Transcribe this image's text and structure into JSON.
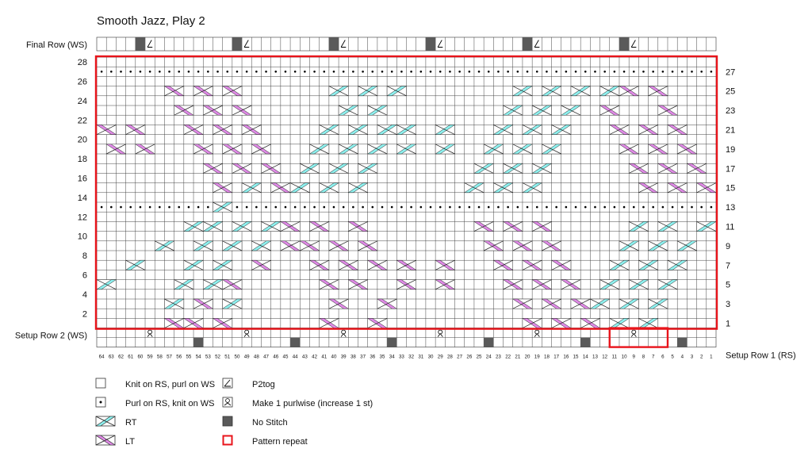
{
  "title": "Smooth Jazz, Play 2",
  "labels": {
    "final_row": "Final Row (WS)",
    "setup_row_2": "Setup Row 2 (WS)",
    "setup_row_1": "Setup Row 1 (RS)"
  },
  "left_row_numbers": [
    "28",
    "26",
    "24",
    "22",
    "20",
    "18",
    "16",
    "14",
    "12",
    "10",
    "8",
    "6",
    "4",
    "2"
  ],
  "right_row_numbers": [
    "27",
    "25",
    "23",
    "21",
    "19",
    "17",
    "15",
    "13",
    "11",
    "9",
    "7",
    "5",
    "3",
    "1"
  ],
  "stitch_columns": [
    "64",
    "63",
    "62",
    "61",
    "60",
    "59",
    "58",
    "57",
    "56",
    "55",
    "54",
    "53",
    "52",
    "51",
    "50",
    "49",
    "48",
    "47",
    "46",
    "45",
    "44",
    "43",
    "42",
    "41",
    "40",
    "39",
    "38",
    "37",
    "36",
    "35",
    "34",
    "33",
    "32",
    "31",
    "30",
    "29",
    "28",
    "27",
    "26",
    "25",
    "24",
    "23",
    "22",
    "21",
    "20",
    "19",
    "18",
    "17",
    "16",
    "15",
    "14",
    "13",
    "12",
    "11",
    "10",
    "9",
    "8",
    "7",
    "6",
    "5",
    "4",
    "3",
    "2",
    "1"
  ],
  "colors": {
    "rt": "#8ef1ef",
    "lt": "#df8ae6",
    "repeat": "#e8141b",
    "nostitch": "#5a5a5a"
  },
  "legend": [
    {
      "icon": "knit",
      "label": "Knit on RS, purl on WS"
    },
    {
      "icon": "purl",
      "label": "Purl on RS, knit on WS"
    },
    {
      "icon": "rt",
      "label": "RT"
    },
    {
      "icon": "lt",
      "label": "LT"
    },
    {
      "icon": "p2tog",
      "label": "P2tog"
    },
    {
      "icon": "m1p",
      "label": "Make 1 purlwise (increase 1 st)"
    },
    {
      "icon": "nostitch",
      "label": "No Stitch"
    },
    {
      "icon": "repeat",
      "label": "Pattern repeat"
    }
  ],
  "special_rows": {
    "final_row": {
      "nostitch": [
        60,
        50,
        40,
        30,
        20,
        10
      ],
      "p2tog": [
        59,
        49,
        39,
        29,
        19,
        9
      ]
    },
    "setup_row_2": {
      "nostitch": [
        54,
        44,
        34,
        24,
        14,
        4
      ],
      "m1p": [
        59,
        49,
        39,
        29,
        19,
        9
      ]
    }
  },
  "purl_rows": [
    27,
    13
  ],
  "cables": [
    [
      64,
      "rt",
      5
    ],
    [
      63,
      "rt",
      5
    ],
    [
      57,
      "rt",
      5
    ],
    [
      56,
      "rt",
      5
    ],
    [
      54,
      "rt",
      5
    ],
    [
      53,
      "rt",
      5
    ],
    [
      60,
      "rt",
      5
    ],
    [
      52,
      "rt",
      5
    ],
    [
      51,
      "rt",
      5
    ],
    [
      23,
      "lt",
      5
    ],
    [
      24,
      "lt",
      5
    ],
    [
      20,
      "lt",
      5
    ],
    [
      33,
      "rt",
      7
    ],
    [
      30,
      "lt",
      7
    ],
    [
      45,
      "rt",
      11
    ],
    [
      44,
      "rt",
      11
    ]
  ]
}
